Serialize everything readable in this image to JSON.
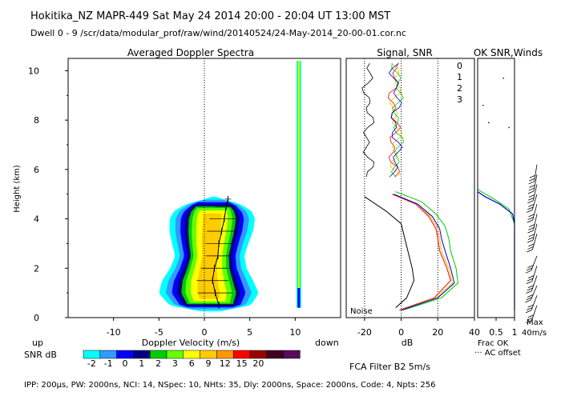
{
  "header": {
    "line1": "Hokitika_NZ  MAPR-449  Sat May 24 2014 20:00 - 20:04 UT 13:00 MST",
    "line2": "Dwell  0 - 9  /scr/data/modular_prof/raw/wind/20140524/24-May-2014_20-00-01.cor.nc"
  },
  "footer": {
    "params": "IPP: 200µs,  PW: 2000ns,  NCI: 14,  NSpec: 10, NHts: 35,  Dly: 2000ns,  Space: 2000ns,  Code: 4,  Npts: 256",
    "filter": "FCA Filter B2  5m/s"
  },
  "colorbar": {
    "label": "SNR dB",
    "colors": [
      "#00ffff",
      "#3399ff",
      "#0000ff",
      "#000080",
      "#00cc00",
      "#66ff00",
      "#ffff00",
      "#ffcc00",
      "#ff9900",
      "#ff0000",
      "#990000",
      "#400020",
      "#5a0a5a"
    ],
    "ticks": [
      "-2",
      "-1",
      "0",
      "1",
      "2",
      "3",
      "6",
      "9",
      "12",
      "15",
      "20"
    ]
  },
  "doppler_panel": {
    "title": "Averaged Doppler Spectra",
    "xlabel": "Doppler Velocity (m/s)",
    "ylabel": "Height (km)",
    "up_label": "up",
    "down_label": "down"
  },
  "signal_panel": {
    "title": "Signal, SNR",
    "xlabel": "dB",
    "noise_label": "Noise",
    "beam_labels": [
      "0",
      "1",
      "2",
      "3"
    ],
    "beam_colors": [
      "#ff0000",
      "#e8c400",
      "#00cc00",
      "#0000cc"
    ]
  },
  "ok_panel": {
    "title": "OK SNR,Winds",
    "xlabel": "Frac OK",
    "note": "··· AC offset",
    "max_label": "Max",
    "max_value": "40m/s"
  },
  "chart_data": [
    {
      "type": "heatmap",
      "title": "Averaged Doppler Spectra",
      "xlabel": "Doppler Velocity (m/s)",
      "ylabel": "Height (km)",
      "xlim": [
        -15,
        15
      ],
      "ylim": [
        0,
        10.5
      ],
      "xticks": [
        -10,
        -5,
        0,
        5,
        10
      ],
      "yticks": [
        0,
        2,
        4,
        6,
        8,
        10
      ],
      "profile": [
        {
          "h": 0.2,
          "hw": 0.3
        },
        {
          "h": 0.5,
          "hw": 4.5
        },
        {
          "h": 1.0,
          "hw": 5.5
        },
        {
          "h": 1.5,
          "hw": 5.0
        },
        {
          "h": 2.0,
          "hw": 4.2
        },
        {
          "h": 2.5,
          "hw": 3.8
        },
        {
          "h": 3.0,
          "hw": 4.2
        },
        {
          "h": 3.5,
          "hw": 4.6
        },
        {
          "h": 4.0,
          "hw": 4.7
        },
        {
          "h": 4.3,
          "hw": 4.3
        },
        {
          "h": 4.6,
          "hw": 3.0
        },
        {
          "h": 4.8,
          "hw": 1.0
        },
        {
          "h": 4.9,
          "hw": 0.2
        }
      ],
      "center_velocity": [
        {
          "h": 0.5,
          "v": 1.6
        },
        {
          "h": 1.0,
          "v": 1.2
        },
        {
          "h": 1.5,
          "v": 0.9
        },
        {
          "h": 2.0,
          "v": 1.1
        },
        {
          "h": 2.5,
          "v": 1.5
        },
        {
          "h": 3.0,
          "v": 1.6
        },
        {
          "h": 3.5,
          "v": 1.9
        },
        {
          "h": 4.0,
          "v": 2.2
        },
        {
          "h": 4.5,
          "v": 2.4
        },
        {
          "h": 4.8,
          "v": 2.6
        }
      ],
      "dc_stripe_velocity": 10.4
    },
    {
      "type": "line",
      "title": "Signal, SNR",
      "xlabel": "dB",
      "ylabel": "Height (km)",
      "xlim": [
        -30,
        40
      ],
      "ylim": [
        0,
        10.5
      ],
      "xticks": [
        -20,
        0,
        20
      ],
      "series": [
        {
          "name": "Noise",
          "points": [
            [
              -3,
              0.4
            ],
            [
              3,
              0.8
            ],
            [
              7,
              1.5
            ],
            [
              6,
              2.0
            ],
            [
              4,
              2.6
            ],
            [
              2,
              3.2
            ],
            [
              0,
              3.8
            ],
            [
              -8,
              4.3
            ],
            [
              -20,
              4.9
            ]
          ]
        },
        {
          "name": "0",
          "points": [
            [
              -1,
              0.3
            ],
            [
              18,
              0.8
            ],
            [
              27,
              1.5
            ],
            [
              25,
              2.0
            ],
            [
              21,
              2.7
            ],
            [
              20,
              3.2
            ],
            [
              19,
              3.6
            ],
            [
              15,
              4.1
            ],
            [
              8,
              4.6
            ],
            [
              -5,
              5.0
            ]
          ]
        },
        {
          "name": "1",
          "points": [
            [
              0,
              0.3
            ],
            [
              19,
              0.8
            ],
            [
              28,
              1.4
            ],
            [
              26,
              2.0
            ],
            [
              22,
              2.7
            ],
            [
              21,
              3.2
            ],
            [
              20,
              3.6
            ],
            [
              16,
              4.1
            ],
            [
              9,
              4.6
            ],
            [
              -4,
              5.0
            ]
          ]
        },
        {
          "name": "2",
          "points": [
            [
              1,
              0.3
            ],
            [
              22,
              0.8
            ],
            [
              31,
              1.4
            ],
            [
              30,
              2.0
            ],
            [
              27,
              2.7
            ],
            [
              26,
              3.2
            ],
            [
              24,
              3.7
            ],
            [
              19,
              4.2
            ],
            [
              11,
              4.7
            ],
            [
              -3,
              5.1
            ]
          ]
        },
        {
          "name": "3",
          "points": [
            [
              0,
              0.3
            ],
            [
              20,
              0.8
            ],
            [
              29,
              1.4
            ],
            [
              27,
              2.0
            ],
            [
              24,
              2.7
            ],
            [
              22,
              3.2
            ],
            [
              21,
              3.6
            ],
            [
              17,
              4.1
            ],
            [
              9,
              4.6
            ],
            [
              -4,
              5.0
            ]
          ]
        }
      ]
    },
    {
      "type": "line",
      "title": "OK SNR,Winds",
      "xlabel": "Frac OK",
      "xlim": [
        0,
        1
      ],
      "ylim": [
        0,
        10.5
      ],
      "xticks": [
        0.5,
        1
      ],
      "series": [
        {
          "name": "Frac OK",
          "points": [
            [
              1,
              0.3
            ],
            [
              1,
              3.8
            ],
            [
              0.95,
              4.2
            ],
            [
              0.6,
              4.6
            ],
            [
              0.2,
              4.9
            ],
            [
              0,
              5.1
            ]
          ]
        }
      ]
    }
  ]
}
